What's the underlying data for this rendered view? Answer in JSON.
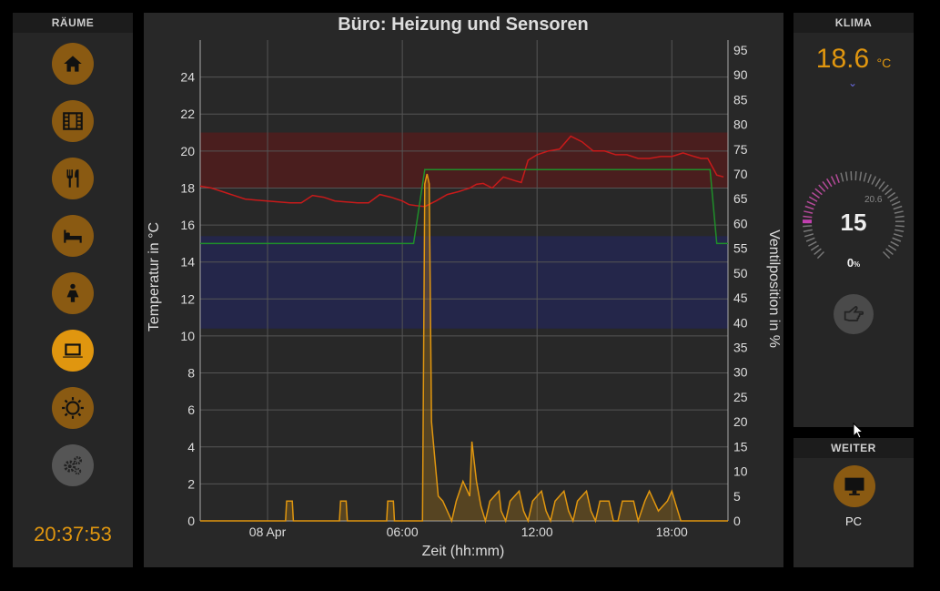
{
  "left": {
    "header": "RÄUME",
    "rooms": [
      {
        "icon": "home-icon"
      },
      {
        "icon": "film-icon"
      },
      {
        "icon": "cutlery-icon"
      },
      {
        "icon": "bed-icon"
      },
      {
        "icon": "child-icon"
      },
      {
        "icon": "laptop-icon",
        "active": true
      },
      {
        "icon": "sun-icon"
      },
      {
        "icon": "gears-icon"
      }
    ],
    "clock": "20:37:53"
  },
  "main": {
    "chart_data": {
      "type": "line",
      "title": "Büro: Heizung und Sensoren",
      "xlabel": "Zeit (hh:mm)",
      "ylabel": "Temperatur in °C",
      "ylabel_right": "Ventilposition in %",
      "x_ticks": [
        "08 Apr",
        "06:00",
        "12:00",
        "18:00"
      ],
      "y_ticks": [
        "0",
        "2",
        "4",
        "6",
        "8",
        "10",
        "12",
        "14",
        "16",
        "18",
        "20",
        "22",
        "24"
      ],
      "y2_ticks": [
        "0",
        "5",
        "10",
        "15",
        "20",
        "25",
        "30",
        "35",
        "40",
        "45",
        "50",
        "55",
        "60",
        "65",
        "70",
        "75",
        "80",
        "85",
        "90",
        "95"
      ],
      "ylim": [
        0,
        26
      ],
      "y2lim": [
        0,
        97
      ],
      "xlim_hours": [
        -3,
        20.5
      ],
      "grid": true,
      "bands": [
        {
          "from": 18,
          "to": 21,
          "color": "#4a1e1e"
        },
        {
          "from": 10.4,
          "to": 15.4,
          "color": "#24264a"
        }
      ],
      "series": [
        {
          "color": "#c81a1a",
          "axis": "left",
          "x": [
            -3,
            -2.5,
            -2,
            -1.5,
            -1,
            -0.5,
            0,
            0.5,
            1,
            1.5,
            2,
            2.5,
            3,
            3.5,
            4,
            4.5,
            5,
            5.5,
            6,
            6.3,
            6.6,
            7,
            7.5,
            8,
            8.5,
            9,
            9.3,
            9.6,
            10,
            10.5,
            11,
            11.3,
            11.6,
            12,
            12.5,
            13,
            13.5,
            14,
            14.5,
            15,
            15.5,
            16,
            16.5,
            17,
            17.5,
            18,
            18.5,
            19,
            19.3,
            19.6,
            20,
            20.3
          ],
          "y": [
            18.1,
            18.0,
            17.8,
            17.6,
            17.4,
            17.35,
            17.3,
            17.25,
            17.2,
            17.2,
            17.6,
            17.5,
            17.3,
            17.25,
            17.2,
            17.2,
            17.65,
            17.5,
            17.3,
            17.1,
            17.05,
            17.0,
            17.3,
            17.65,
            17.8,
            18.0,
            18.2,
            18.25,
            18.0,
            18.6,
            18.4,
            18.3,
            19.5,
            19.8,
            20.0,
            20.1,
            20.8,
            20.5,
            20.0,
            20.0,
            19.8,
            19.8,
            19.6,
            19.6,
            19.7,
            19.7,
            19.9,
            19.7,
            19.6,
            19.6,
            18.7,
            18.6
          ]
        },
        {
          "color": "#1f8f2a",
          "axis": "left",
          "x": [
            -3,
            6.5,
            7,
            19.7,
            20,
            20.5
          ],
          "y": [
            15,
            15,
            19,
            19,
            15,
            15
          ]
        },
        {
          "color": "#e0960f",
          "axis": "right",
          "x": [
            -3,
            0.8,
            0.85,
            1.1,
            1.15,
            3.2,
            3.25,
            3.5,
            3.55,
            5.3,
            5.35,
            5.6,
            5.65,
            6.9,
            7.0,
            7.1,
            7.2,
            7.3,
            7.5,
            7.6,
            7.8,
            8.0,
            8.2,
            8.4,
            8.7,
            9.0,
            9.1,
            9.3,
            9.5,
            9.7,
            9.9,
            10.3,
            10.4,
            10.6,
            10.8,
            11.2,
            11.4,
            11.6,
            11.8,
            12.2,
            12.4,
            12.6,
            12.8,
            13.2,
            13.4,
            13.6,
            13.8,
            14.2,
            14.4,
            14.6,
            14.8,
            15.2,
            15.4,
            15.6,
            15.8,
            16.3,
            16.5,
            16.8,
            17.0,
            17.2,
            17.4,
            17.8,
            18.0,
            18.2,
            18.4,
            18.8,
            20.5
          ],
          "y": [
            0,
            0,
            4,
            4,
            0,
            0,
            4,
            4,
            0,
            0,
            4,
            4,
            0,
            0,
            68,
            70,
            68,
            20,
            10,
            5,
            4,
            2,
            0,
            4,
            8,
            5,
            16,
            8,
            3,
            0,
            4,
            6,
            2,
            0,
            4,
            6,
            2,
            0,
            4,
            6,
            2,
            0,
            4,
            6,
            2,
            0,
            4,
            6,
            2,
            0,
            4,
            4,
            0,
            0,
            4,
            4,
            0,
            4,
            6,
            4,
            2,
            4,
            6,
            3,
            0,
            0,
            0
          ]
        }
      ]
    }
  },
  "klima": {
    "header": "KLIMA",
    "temperature": "18.6",
    "unit": "°C",
    "gauge_value": "15",
    "gauge_small": "20.6",
    "valve": "0",
    "valve_unit": "%"
  },
  "weiter": {
    "header": "WEITER",
    "pc_label": "PC"
  },
  "colors": {
    "accent": "#e0960f",
    "accent_dim": "#8a5a12",
    "panel": "#262626"
  }
}
